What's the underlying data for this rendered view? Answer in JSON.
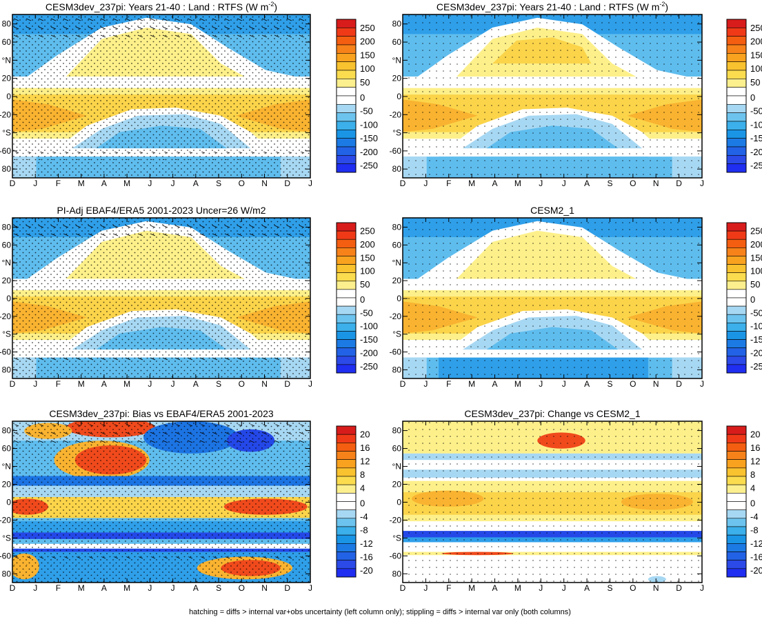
{
  "footer": "hatching = diffs > internal var+obs uncertainty (left column only); stippling = diffs > internal var only (both columns)",
  "months": [
    "D",
    "J",
    "F",
    "M",
    "A",
    "M",
    "J",
    "J",
    "A",
    "S",
    "O",
    "N",
    "D",
    "J"
  ],
  "lat_ticks": [
    "80",
    "60",
    "°N",
    "20",
    "0",
    "-20",
    "°S",
    "-60",
    "80"
  ],
  "colorbars": {
    "main": {
      "labels": [
        "250",
        "200",
        "150",
        "100",
        "50",
        "0",
        "-50",
        "-100",
        "-150",
        "-200",
        "-250"
      ],
      "colors": [
        "#d81c1c",
        "#f03a17",
        "#f45e10",
        "#f7821a",
        "#f9a21f",
        "#f9c22f",
        "#fbdc4f",
        "#fcef8e",
        "#ffffff",
        "#ffffff",
        "#a7d8f3",
        "#6cc4ee",
        "#3bb0ea",
        "#1a95e6",
        "#1c7ae4",
        "#2262e6",
        "#2b4ae8",
        "#1f2ef0"
      ]
    },
    "diff": {
      "labels": [
        "20",
        "16",
        "12",
        "8",
        "4",
        "0",
        "-4",
        "-8",
        "-12",
        "-16",
        "-20"
      ],
      "colors": [
        "#d81c1c",
        "#f03a17",
        "#f45e10",
        "#f7821a",
        "#f9a21f",
        "#f9c22f",
        "#fbdc4f",
        "#fcef8e",
        "#ffffff",
        "#ffffff",
        "#a7d8f3",
        "#6cc4ee",
        "#3bb0ea",
        "#1a95e6",
        "#1c7ae4",
        "#2262e6",
        "#2b4ae8",
        "#1f2ef0"
      ]
    }
  },
  "chart_data": [
    {
      "type": "heatmap",
      "title": "CESM3dev_237pi: Years 21-40 : Land : RTFS (W m",
      "title_sup": "-2",
      "title_end": ")",
      "x": "month",
      "y": "latitude",
      "scale": "main",
      "hatching": true
    },
    {
      "type": "heatmap",
      "title": "CESM3dev_237pi: Years 21-40 : Land : RTFS (W m",
      "title_sup": "-2",
      "title_end": ")",
      "x": "month",
      "y": "latitude",
      "scale": "main",
      "hatching": false
    },
    {
      "type": "heatmap",
      "title": "PI-Adj EBAF4/ERA5 2001-2023 Uncer=26 W/m2",
      "title_sup": "",
      "title_end": "",
      "x": "month",
      "y": "latitude",
      "scale": "main",
      "hatching": true
    },
    {
      "type": "heatmap",
      "title": "CESM2_1",
      "title_sup": "",
      "title_end": "",
      "x": "month",
      "y": "latitude",
      "scale": "main",
      "hatching": false
    },
    {
      "type": "heatmap",
      "title": "CESM3dev_237pi: Bias vs EBAF4/ERA5 2001-2023",
      "title_sup": "",
      "title_end": "",
      "x": "month",
      "y": "latitude",
      "scale": "diff",
      "hatching": true
    },
    {
      "type": "heatmap",
      "title": "CESM3dev_237pi: Change vs CESM2_1",
      "title_sup": "",
      "title_end": "",
      "x": "month",
      "y": "latitude",
      "scale": "diff",
      "hatching": false
    }
  ]
}
